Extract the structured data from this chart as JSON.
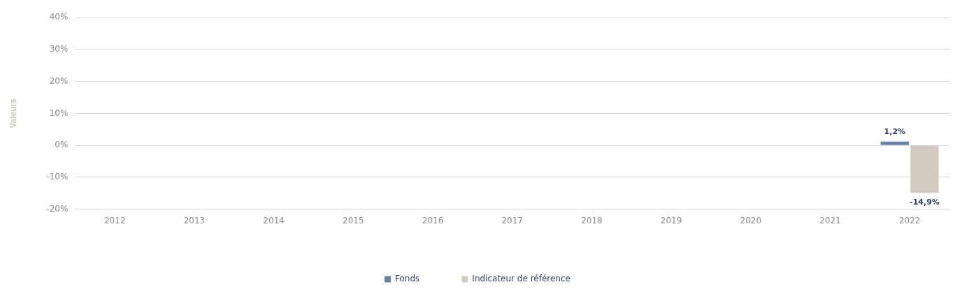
{
  "chart_data": {
    "type": "bar",
    "ylabel": "Valeurs",
    "categories": [
      "2012",
      "2013",
      "2014",
      "2015",
      "2016",
      "2017",
      "2018",
      "2019",
      "2020",
      "2021",
      "2022"
    ],
    "series": [
      {
        "name": "Fonds",
        "color": "#6b84a6",
        "values": [
          null,
          null,
          null,
          null,
          null,
          null,
          null,
          null,
          null,
          null,
          1.2
        ],
        "value_labels": [
          null,
          null,
          null,
          null,
          null,
          null,
          null,
          null,
          null,
          null,
          "1,2%"
        ]
      },
      {
        "name": "Indicateur de référence",
        "color": "#d3cbc2",
        "values": [
          null,
          null,
          null,
          null,
          null,
          null,
          null,
          null,
          null,
          null,
          -14.9
        ],
        "value_labels": [
          null,
          null,
          null,
          null,
          null,
          null,
          null,
          null,
          null,
          null,
          "-14,9%"
        ]
      }
    ],
    "ylim": [
      -20,
      40
    ],
    "yticks": [
      {
        "value": -20,
        "label": "-20%"
      },
      {
        "value": -10,
        "label": "-10%"
      },
      {
        "value": 0,
        "label": "0%"
      },
      {
        "value": 10,
        "label": "10%"
      },
      {
        "value": 20,
        "label": "20%"
      },
      {
        "value": 30,
        "label": "30%"
      },
      {
        "value": 40,
        "label": "40%"
      }
    ],
    "grid": "y",
    "legend": "bottom"
  }
}
